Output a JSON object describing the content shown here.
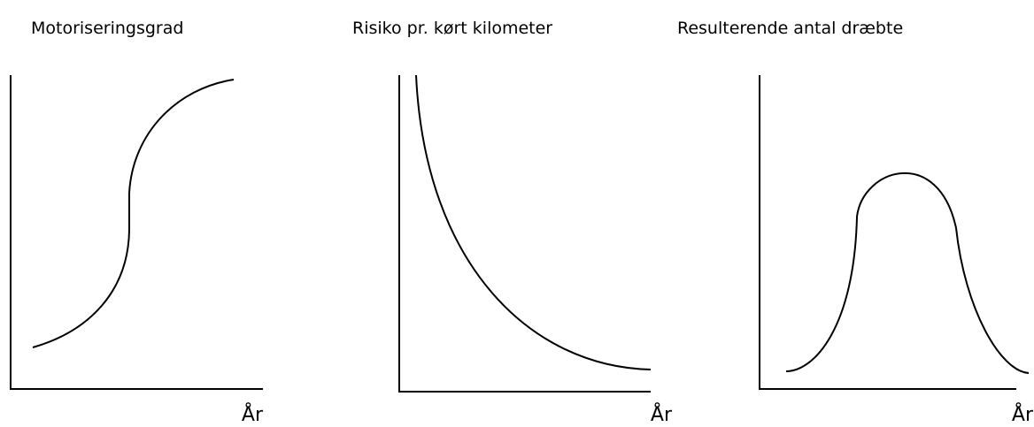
{
  "panels": [
    {
      "title": "Motoriseringsgrad",
      "x_label": "År"
    },
    {
      "title": "Risiko pr. kørt kilometer",
      "x_label": "År"
    },
    {
      "title": "Resulterende antal dræbte",
      "x_label": "År"
    }
  ]
}
